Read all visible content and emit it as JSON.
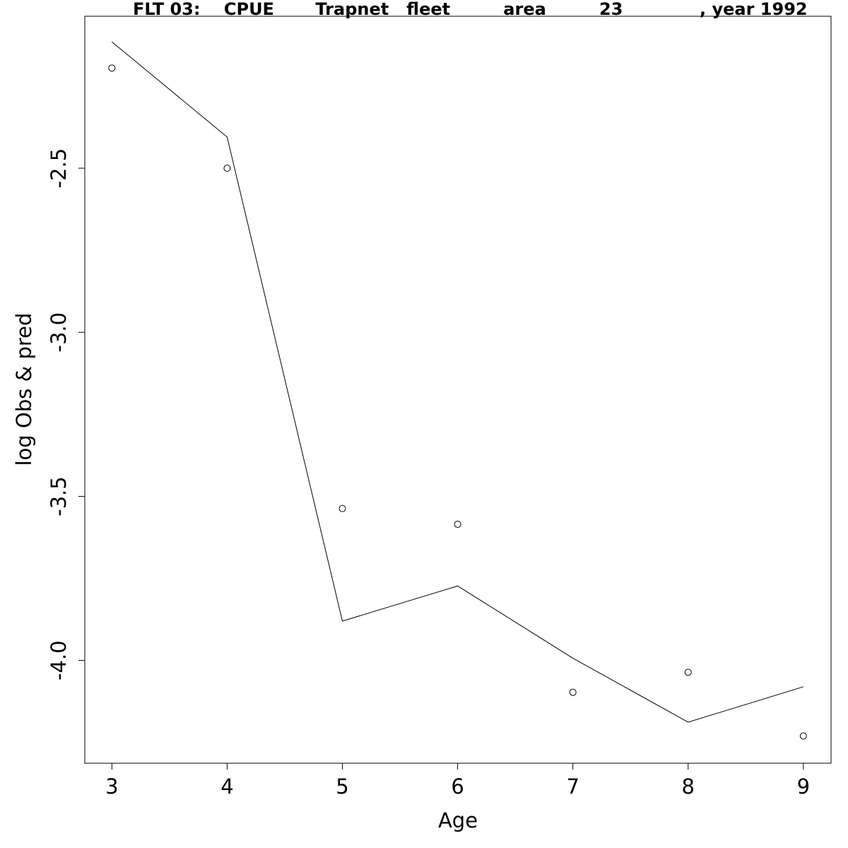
{
  "chart_data": {
    "type": "line",
    "title": "FLT 03:    CPUE       Trapnet   fleet         area         23             , year 1992",
    "xlabel": "Age",
    "ylabel": "log Obs & pred",
    "x": [
      3,
      4,
      5,
      6,
      7,
      8,
      9
    ],
    "xlim": [
      2.765,
      9.24
    ],
    "ylim": [
      -4.313,
      -2.037
    ],
    "x_ticks": [
      "3",
      "4",
      "5",
      "6",
      "7",
      "8",
      "9"
    ],
    "y_ticks": [
      -4.0,
      -3.5,
      -3.0,
      -2.5
    ],
    "y_tick_labels": [
      "-4.0",
      "-3.5",
      "-3.0",
      "-2.5"
    ],
    "grid": false,
    "series": [
      {
        "mark": "points",
        "values": [
          -2.195,
          -2.5,
          -3.537,
          -3.585,
          -4.097,
          -4.036,
          -4.23
        ]
      },
      {
        "mark": "line",
        "values": [
          -2.115,
          -2.405,
          -3.88,
          -3.773,
          -3.993,
          -4.188,
          -4.08
        ]
      }
    ]
  }
}
